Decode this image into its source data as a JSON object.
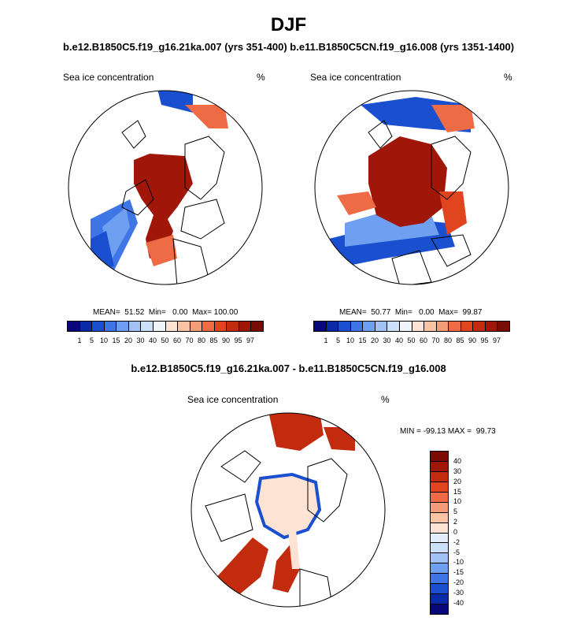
{
  "header": {
    "title": "DJF",
    "subtitle": "b.e12.B1850C5.f19_g16.21ka.007 (yrs 351-400) b.e11.B1850C5CN.f19_g16.008 (yrs 1351-1400)",
    "diff_title": "b.e12.B1850C5.f19_g16.21ka.007 - b.e11.B1850C5CN.f19_g16.008"
  },
  "panel_left": {
    "label": "Sea ice concentration",
    "units": "%",
    "stats": "MEAN=  51.52  Min=   0.00  Max= 100.00"
  },
  "panel_right": {
    "label": "Sea ice concentration",
    "units": "%",
    "stats": "MEAN=  50.77  Min=   0.00  Max=  99.87"
  },
  "panel_diff": {
    "label": "Sea ice concentration",
    "units": "%",
    "minmax": "MIN = -99.13 MAX =  99.73"
  },
  "colorbar_abs": {
    "ticks": [
      "1",
      "5",
      "10",
      "15",
      "20",
      "30",
      "40",
      "50",
      "60",
      "70",
      "80",
      "85",
      "90",
      "95",
      "97"
    ],
    "colors": [
      "#08087a",
      "#0a2aa8",
      "#1a4fd0",
      "#3f76e6",
      "#6f9ff0",
      "#a2c2f5",
      "#cde0fa",
      "#f0f4fb",
      "#fde3d3",
      "#f9c3a4",
      "#f59c78",
      "#ee6b45",
      "#e0451f",
      "#c22b0e",
      "#a0170a",
      "#7a0c05"
    ]
  },
  "colorbar_diff": {
    "ticks": [
      "40",
      "30",
      "20",
      "15",
      "10",
      "5",
      "2",
      "0",
      "-2",
      "-5",
      "-10",
      "-15",
      "-20",
      "-30",
      "-40"
    ],
    "colors": [
      "#7a0c05",
      "#a0170a",
      "#c22b0e",
      "#e0451f",
      "#ee6b45",
      "#f59c78",
      "#f9c3a4",
      "#fde3d3",
      "#e3eefa",
      "#cde0fa",
      "#a2c2f5",
      "#6f9ff0",
      "#3f76e6",
      "#1a4fd0",
      "#0a2aa8",
      "#08087a"
    ]
  }
}
